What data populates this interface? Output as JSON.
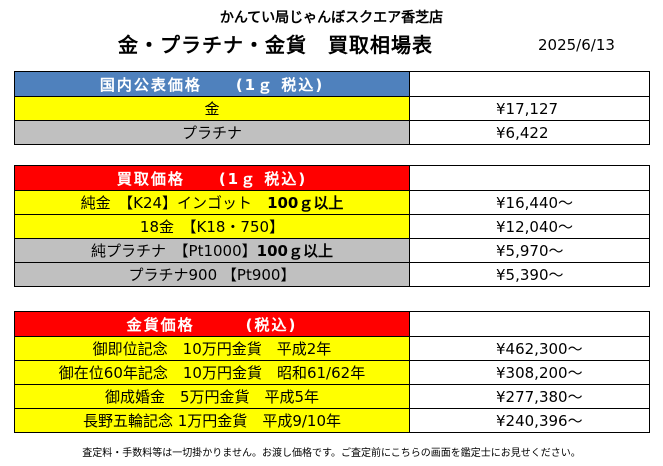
{
  "store_name": "かんてい局じゃんぼスクエア香芝店",
  "title": "金・プラチナ・金貨　買取相場表",
  "date": "2025/6/13",
  "sections": {
    "public": {
      "header": "国内公表価格　　(1ｇ 税込)",
      "rows": [
        {
          "name": "金",
          "price": "¥17,127",
          "name_color": "#ffff00"
        },
        {
          "name": "プラチナ",
          "price": "¥6,422",
          "name_color": "#c0c0c0"
        }
      ]
    },
    "buy": {
      "header": "買取価格　　(1ｇ 税込)",
      "rows": [
        {
          "name_a": "純金　【K24】インゴット　",
          "name_b": "100ｇ以上",
          "price": "¥16,440～",
          "name_color": "#ffff00"
        },
        {
          "name_a": "18金　【K18・750】",
          "name_b": "",
          "price": "¥12,040～",
          "name_color": "#ffff00"
        },
        {
          "name_a": "純プラチナ　【Pt1000】",
          "name_b": "100ｇ以上",
          "price": "¥5,970～",
          "name_color": "#c0c0c0"
        },
        {
          "name_a": "プラチナ900 【Pt900】",
          "name_b": "",
          "price": "¥5,390～",
          "name_color": "#c0c0c0"
        }
      ]
    },
    "coins": {
      "header": "金貨価格　　　(税込)",
      "rows": [
        {
          "name": "御即位記念　10万円金貨　平成2年",
          "price": "¥462,300～"
        },
        {
          "name": "御在位60年記念　10万円金貨　昭和61/62年",
          "price": "¥308,200～"
        },
        {
          "name": "御成婚金　5万円金貨　平成5年",
          "price": "¥277,380～"
        },
        {
          "name": "長野五輪記念 1万円金貨　平成9/10年",
          "price": "¥240,396～"
        }
      ]
    }
  },
  "colors": {
    "blue_header": "#4f81bd",
    "red_header": "#ff0000",
    "gold": "#ffff00",
    "platinum": "#c0c0c0"
  },
  "footnote": "査定料・手数料等は一切掛かりません。お渡し価格です。ご査定前にこちらの画面を鑑定士にお見せください。"
}
